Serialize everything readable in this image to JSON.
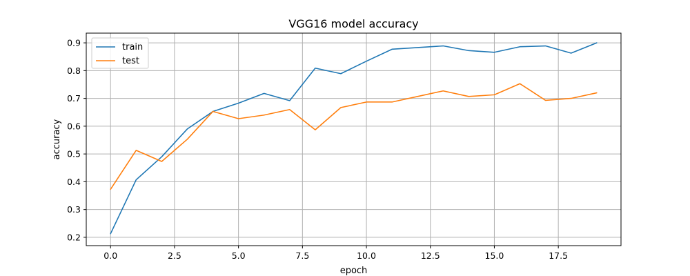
{
  "chart_data": {
    "type": "line",
    "title": "VGG16 model accuracy",
    "xlabel": "epoch",
    "ylabel": "accuracy",
    "xlim": [
      -0.95,
      19.95
    ],
    "ylim": [
      0.17,
      0.935
    ],
    "xticks": [
      0.0,
      2.5,
      5.0,
      7.5,
      10.0,
      12.5,
      15.0,
      17.5
    ],
    "xtick_labels": [
      "0.0",
      "2.5",
      "5.0",
      "7.5",
      "10.0",
      "12.5",
      "15.0",
      "17.5"
    ],
    "yticks": [
      0.2,
      0.3,
      0.4,
      0.5,
      0.6,
      0.7,
      0.8,
      0.9
    ],
    "ytick_labels": [
      "0.2",
      "0.3",
      "0.4",
      "0.5",
      "0.6",
      "0.7",
      "0.8",
      "0.9"
    ],
    "grid": true,
    "legend_position": "top-left",
    "x": [
      0,
      1,
      2,
      3,
      4,
      5,
      6,
      7,
      8,
      9,
      10,
      11,
      12,
      13,
      14,
      15,
      16,
      17,
      18,
      19
    ],
    "series": [
      {
        "name": "train",
        "color": "#1f77b4",
        "values": [
          0.213,
          0.407,
          0.49,
          0.59,
          0.653,
          0.683,
          0.718,
          0.692,
          0.809,
          0.789,
          0.834,
          0.877,
          0.883,
          0.889,
          0.872,
          0.866,
          0.886,
          0.889,
          0.863,
          0.9
        ]
      },
      {
        "name": "test",
        "color": "#ff7f0e",
        "values": [
          0.373,
          0.513,
          0.473,
          0.553,
          0.653,
          0.627,
          0.64,
          0.66,
          0.587,
          0.667,
          0.687,
          0.687,
          0.707,
          0.727,
          0.707,
          0.713,
          0.753,
          0.693,
          0.7,
          0.72
        ]
      }
    ]
  }
}
